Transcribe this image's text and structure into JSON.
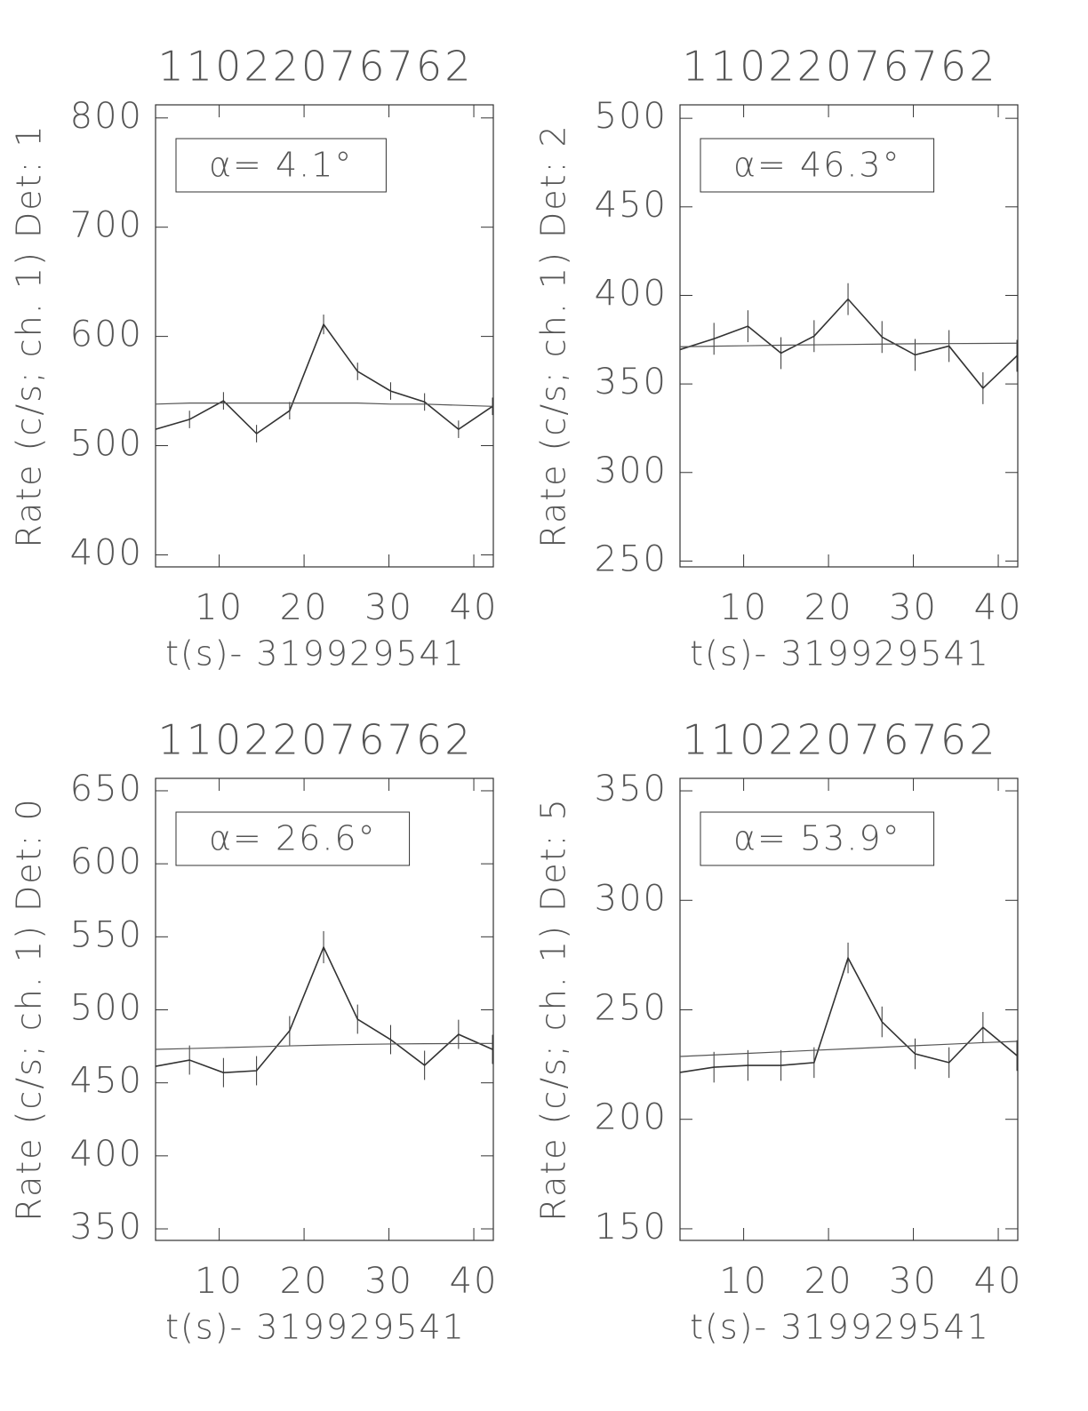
{
  "chart_data": [
    {
      "type": "line",
      "title": "11022076762",
      "xlabel": "t(s)- 319929541",
      "ylabel": "Rate (c/s; ch. 1) Det: 1",
      "annotation": "α= 4.1°",
      "x": [
        2.5,
        6.5,
        10.5,
        14.4,
        18.3,
        22.3,
        26.3,
        30.2,
        34.2,
        38.2,
        42.2
      ],
      "series": [
        {
          "color": "#333333",
          "values": [
            515,
            524,
            541,
            511,
            532,
            611,
            568,
            550,
            540,
            515,
            536
          ],
          "errors": [
            8,
            8,
            8,
            8,
            8,
            9,
            8,
            8,
            8,
            8,
            8
          ]
        },
        {
          "color": "#555555",
          "values": [
            538,
            539,
            539,
            539,
            539,
            539,
            539,
            538,
            538,
            537,
            536
          ]
        }
      ],
      "xlim": [
        2.5,
        42.3
      ],
      "ylim": [
        389,
        812
      ],
      "xticks": [
        10,
        20,
        30,
        40
      ],
      "yticks": [
        400,
        500,
        600,
        700,
        800
      ]
    },
    {
      "type": "line",
      "title": "11022076762",
      "xlabel": "t(s)- 319929541",
      "ylabel": "Rate (c/s; ch. 1) Det: 2",
      "annotation": "α= 46.3°",
      "x": [
        2.5,
        6.5,
        10.5,
        14.4,
        18.3,
        22.3,
        26.3,
        30.2,
        34.2,
        38.2,
        42.2
      ],
      "series": [
        {
          "color": "#333333",
          "values": [
            369.4,
            375.5,
            382.6,
            367.4,
            377,
            397.9,
            376.5,
            366.4,
            371.4,
            347.6,
            365.9
          ],
          "errors": [
            9,
            9,
            9,
            9,
            9,
            9,
            9,
            9,
            9,
            9,
            9
          ]
        },
        {
          "color": "#555555",
          "values": [
            371,
            371.3,
            371.6,
            371.9,
            372.1,
            372.3,
            372.5,
            372.7,
            372.8,
            372.9,
            373
          ]
        }
      ],
      "xlim": [
        2.5,
        42.3
      ],
      "ylim": [
        246.7,
        507.6
      ],
      "xticks": [
        10,
        20,
        30,
        40
      ],
      "yticks": [
        250,
        300,
        350,
        400,
        450,
        500
      ]
    },
    {
      "type": "line",
      "title": "11022076762",
      "xlabel": "t(s)- 319929541",
      "ylabel": "Rate (c/s; ch. 1) Det: 0",
      "annotation": "α= 26.6°",
      "x": [
        2.5,
        6.5,
        10.5,
        14.4,
        18.3,
        22.3,
        26.3,
        30.2,
        34.2,
        38.2,
        42.2
      ],
      "series": [
        {
          "color": "#333333",
          "values": [
            461.3,
            465.6,
            457,
            458.3,
            485.7,
            542.9,
            493.6,
            479.6,
            462,
            483.2,
            472.9
          ],
          "errors": [
            10,
            10,
            10,
            10,
            10,
            11,
            10,
            10,
            10,
            10,
            10
          ]
        },
        {
          "color": "#555555",
          "values": [
            472.9,
            473.5,
            474.1,
            474.7,
            475.3,
            475.9,
            476.3,
            476.6,
            476.8,
            476.9,
            477
          ]
        }
      ],
      "xlim": [
        2.5,
        42.3
      ],
      "ylim": [
        342.1,
        658.5
      ],
      "xticks": [
        10,
        20,
        30,
        40
      ],
      "yticks": [
        350,
        400,
        450,
        500,
        550,
        600,
        650
      ]
    },
    {
      "type": "line",
      "title": "11022076762",
      "xlabel": "t(s)- 319929541",
      "ylabel": "Rate (c/s; ch. 1) Det: 5",
      "annotation": "α= 53.9°",
      "x": [
        2.5,
        6.5,
        10.5,
        14.4,
        18.3,
        22.3,
        26.3,
        30.2,
        34.2,
        38.2,
        42.2
      ],
      "series": [
        {
          "color": "#333333",
          "values": [
            221.4,
            223.8,
            224.6,
            224.6,
            225.9,
            273.7,
            244.5,
            229.9,
            225.9,
            242,
            229.1
          ],
          "errors": [
            7,
            7,
            7,
            7,
            7,
            7,
            7,
            7,
            7,
            7,
            7
          ]
        },
        {
          "color": "#555555",
          "values": [
            228.7,
            229.4,
            230.1,
            230.8,
            231.5,
            232.2,
            232.9,
            233.6,
            234.3,
            235,
            235.6
          ]
        }
      ],
      "xlim": [
        2.5,
        42.3
      ],
      "ylim": [
        144.7,
        355.7
      ],
      "xticks": [
        10,
        20,
        30,
        40
      ],
      "yticks": [
        150,
        200,
        250,
        300,
        350
      ]
    }
  ]
}
